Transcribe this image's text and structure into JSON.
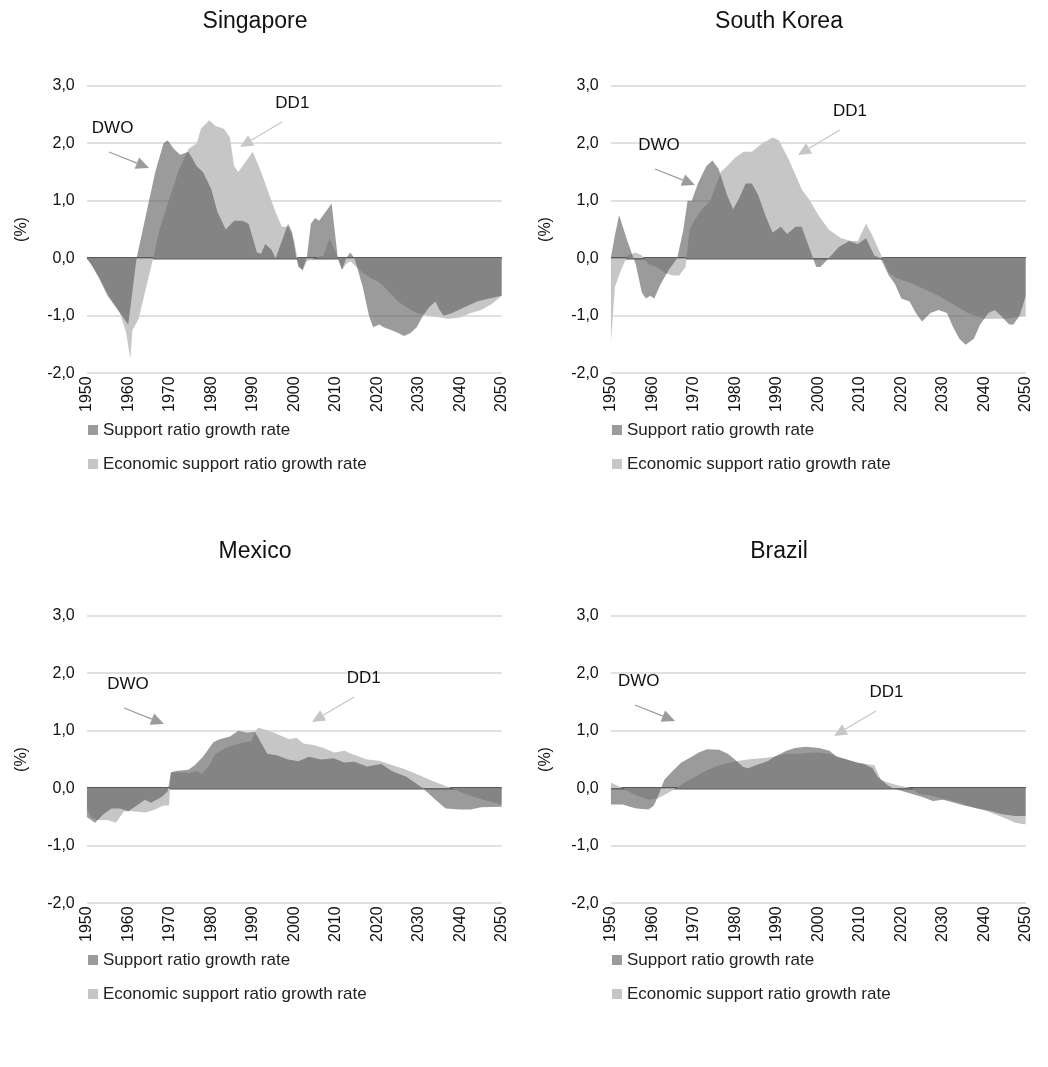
{
  "chart_data": [
    {
      "type": "area",
      "title": "Singapore",
      "ylabel": "(%)",
      "xlim": [
        1950,
        2050
      ],
      "xticks": [
        1950,
        1960,
        1970,
        1980,
        1990,
        2000,
        2010,
        2020,
        2030,
        2040,
        2050
      ],
      "ylim": [
        -2,
        3
      ],
      "yticks": [
        {
          "value": -2,
          "label": "-2,0"
        },
        {
          "value": -1,
          "label": "-1,0"
        },
        {
          "value": 0,
          "label": "0,0"
        },
        {
          "value": 1,
          "label": "1,0"
        },
        {
          "value": 2,
          "label": "2,0"
        },
        {
          "value": 3,
          "label": "3,0"
        }
      ],
      "grid": "y",
      "legend": "bottom",
      "annotations": [
        "DWO",
        "DD1"
      ],
      "series": [
        {
          "name": "Support ratio growth rate",
          "color": "#9b9b9b",
          "x": [
            1950,
            1951,
            1953,
            1955,
            1958,
            1960,
            1962,
            1965,
            1966.5,
            1968.5,
            1969.5,
            1971,
            1972.5,
            1974.5,
            1976.5,
            1978,
            1980,
            1981.5,
            1983.5,
            1985.5,
            1987.5,
            1989,
            1991,
            1992,
            1993,
            1994.5,
            1995.5,
            1997,
            1998.5,
            1999.5,
            2000.5,
            2001,
            2002,
            2003,
            2004,
            2005,
            2006,
            2007,
            2009,
            2010.5,
            2011.5,
            2012.5,
            2013.5,
            2014.5,
            2016.5,
            2018,
            2019,
            2020.5,
            2021.5,
            2023.5,
            2025,
            2026.5,
            2028,
            2029.5,
            2031,
            2032.5,
            2034,
            2035,
            2036,
            2038,
            2041,
            2044,
            2047,
            2050
          ],
          "values": [
            0,
            -0.1,
            -0.35,
            -0.65,
            -0.95,
            -1.15,
            0,
            1.0,
            1.5,
            2.0,
            2.05,
            1.9,
            1.8,
            1.85,
            1.6,
            1.5,
            1.2,
            0.8,
            0.5,
            0.65,
            0.65,
            0.6,
            0.1,
            0.08,
            0.25,
            0.15,
            0,
            0.3,
            0.6,
            0.45,
            0,
            -0.15,
            -0.2,
            0,
            0.6,
            0.7,
            0.65,
            0.75,
            0.95,
            0,
            -0.2,
            0,
            0.1,
            0,
            -0.5,
            -1.0,
            -1.2,
            -1.15,
            -1.2,
            -1.25,
            -1.3,
            -1.35,
            -1.3,
            -1.2,
            -1.0,
            -0.85,
            -0.75,
            -0.9,
            -1.0,
            -0.95,
            -0.85,
            -0.75,
            -0.7,
            -0.65
          ]
        },
        {
          "name": "Economic support ratio growth rate",
          "color": "#c6c6c6",
          "x": [
            1950,
            1952,
            1955,
            1958,
            1959.5,
            1960.5,
            1961,
            1962.5,
            1964,
            1966,
            1967.5,
            1970,
            1972,
            1974.5,
            1976.5,
            1977.5,
            1979.5,
            1981,
            1983,
            1984.5,
            1985.5,
            1986.5,
            1988.5,
            1990,
            1992,
            1993.5,
            1995.5,
            1997,
            1998.5,
            2000,
            2001,
            2002,
            2003,
            2005,
            2007,
            2008.5,
            2010,
            2011.5,
            2012.5,
            2013.5,
            2015,
            2016.5,
            2018.5,
            2020,
            2021,
            2023,
            2025,
            2027,
            2029.5,
            2032,
            2034.5,
            2037,
            2040,
            2042.5,
            2045,
            2047.5,
            2050
          ],
          "values": [
            0,
            -0.2,
            -0.6,
            -0.95,
            -1.3,
            -1.75,
            -1.25,
            -1.05,
            -0.6,
            0,
            0.5,
            1.05,
            1.5,
            1.9,
            2.0,
            2.25,
            2.4,
            2.3,
            2.25,
            2.1,
            1.6,
            1.5,
            1.7,
            1.85,
            1.5,
            1.2,
            0.8,
            0.55,
            0.55,
            0.3,
            -0.1,
            -0.22,
            -0.05,
            0,
            0.05,
            0.35,
            0.1,
            -0.2,
            -0.1,
            -0.05,
            -0.15,
            -0.25,
            -0.35,
            -0.4,
            -0.45,
            -0.6,
            -0.75,
            -0.85,
            -0.95,
            -1.0,
            -1.02,
            -1.05,
            -1.03,
            -0.95,
            -0.9,
            -0.8,
            -0.65
          ]
        }
      ]
    },
    {
      "type": "area",
      "title": "South Korea",
      "ylabel": "(%)",
      "xlim": [
        1950,
        2050
      ],
      "xticks": [
        1950,
        1960,
        1970,
        1980,
        1990,
        2000,
        2010,
        2020,
        2030,
        2040,
        2050
      ],
      "ylim": [
        -2,
        3
      ],
      "yticks": [
        {
          "value": -2,
          "label": "-2,0"
        },
        {
          "value": -1,
          "label": "-1,0"
        },
        {
          "value": 0,
          "label": "0,0"
        },
        {
          "value": 1,
          "label": "1,0"
        },
        {
          "value": 2,
          "label": "2,0"
        },
        {
          "value": 3,
          "label": "3,0"
        }
      ],
      "grid": "y",
      "legend": "bottom",
      "annotations": [
        "DWO",
        "DD1"
      ],
      "series": [
        {
          "name": "Support ratio growth rate",
          "color": "#9b9b9b",
          "x": [
            1950,
            1951,
            1952,
            1954,
            1956,
            1957.5,
            1958.5,
            1959.5,
            1960.5,
            1962,
            1964,
            1966,
            1967.5,
            1968.5,
            1969.5,
            1971,
            1973,
            1974.5,
            1976,
            1978,
            1979.5,
            1981,
            1982.5,
            1984,
            1985.5,
            1987.5,
            1989,
            1991,
            1992.5,
            1994.5,
            1996,
            1997.5,
            1999.5,
            2000.5,
            2002.5,
            2005,
            2007.5,
            2009.5,
            2011.5,
            2013.5,
            2015,
            2017,
            2018.5,
            2020,
            2022,
            2023.5,
            2025,
            2027,
            2029,
            2031,
            2032.5,
            2034,
            2035.5,
            2037.5,
            2039,
            2041,
            2042.5,
            2044,
            2046,
            2047,
            2048.5,
            2050
          ],
          "values": [
            0,
            0.4,
            0.75,
            0.3,
            -0.1,
            -0.6,
            -0.7,
            -0.65,
            -0.7,
            -0.45,
            -0.2,
            0,
            0.5,
            1.0,
            1.0,
            1.3,
            1.6,
            1.7,
            1.55,
            1.1,
            0.85,
            1.05,
            1.3,
            1.3,
            1.1,
            0.7,
            0.45,
            0.55,
            0.42,
            0.55,
            0.55,
            0.25,
            -0.15,
            -0.15,
            0,
            0.2,
            0.3,
            0.25,
            0.35,
            0.05,
            0,
            -0.3,
            -0.45,
            -0.7,
            -0.75,
            -0.95,
            -1.1,
            -0.95,
            -0.9,
            -0.95,
            -1.2,
            -1.4,
            -1.5,
            -1.4,
            -1.15,
            -0.95,
            -0.9,
            -1.0,
            -1.15,
            -1.15,
            -1.0,
            -0.65
          ]
        },
        {
          "name": "Economic support ratio growth rate",
          "color": "#c6c6c6",
          "x": [
            1950,
            1951,
            1952.5,
            1954,
            1956,
            1957.5,
            1959,
            1961,
            1963,
            1965,
            1966.5,
            1968,
            1969,
            1970.5,
            1972,
            1974,
            1976.5,
            1978,
            1980,
            1982,
            1984,
            1986.5,
            1989,
            1990.5,
            1993,
            1996,
            1998,
            2000,
            2002.5,
            2005.5,
            2008,
            2009.5,
            2011.5,
            2013,
            2015.5,
            2017,
            2019,
            2021,
            2023,
            2026,
            2029,
            2032.5,
            2036,
            2040,
            2045,
            2050
          ],
          "values": [
            -1.5,
            -0.5,
            -0.2,
            0.05,
            0.1,
            0.05,
            -0.1,
            -0.15,
            -0.25,
            -0.3,
            -0.3,
            -0.15,
            0.5,
            0.7,
            0.85,
            1.0,
            1.5,
            1.6,
            1.75,
            1.85,
            1.85,
            2.0,
            2.1,
            2.05,
            1.7,
            1.2,
            1.0,
            0.75,
            0.5,
            0.35,
            0.3,
            0.3,
            0.6,
            0.4,
            0,
            -0.25,
            -0.35,
            -0.4,
            -0.45,
            -0.55,
            -0.65,
            -0.8,
            -0.95,
            -1.05,
            -1.05,
            -1.0
          ]
        }
      ]
    },
    {
      "type": "area",
      "title": "Mexico",
      "ylabel": "(%)",
      "xlim": [
        1950,
        2050
      ],
      "xticks": [
        1950,
        1960,
        1970,
        1980,
        1990,
        2000,
        2010,
        2020,
        2030,
        2040,
        2050
      ],
      "ylim": [
        -2,
        3
      ],
      "yticks": [
        {
          "value": -2,
          "label": "-2,0"
        },
        {
          "value": -1,
          "label": "-1,0"
        },
        {
          "value": 0,
          "label": "0,0"
        },
        {
          "value": 1,
          "label": "1,0"
        },
        {
          "value": 2,
          "label": "2,0"
        },
        {
          "value": 3,
          "label": "3,0"
        }
      ],
      "grid": "y",
      "legend": "bottom",
      "annotations": [
        "DWO",
        "DD1"
      ],
      "series": [
        {
          "name": "Support ratio growth rate",
          "color": "#9b9b9b",
          "x": [
            1950,
            1952,
            1954,
            1956,
            1958,
            1960,
            1963,
            1964,
            1965.5,
            1968,
            1969.5,
            1970.3,
            1971.5,
            1974.5,
            1976,
            1978,
            1980.5,
            1982,
            1984.5,
            1986.5,
            1988.5,
            1990.5,
            1993.5,
            1996,
            1998.5,
            2001,
            2003.5,
            2006.5,
            2009.5,
            2012,
            2014.5,
            2017.5,
            2021,
            2023.5,
            2027,
            2031,
            2032.5,
            2034,
            2036.5,
            2040,
            2042.5,
            2045,
            2050
          ],
          "values": [
            -0.5,
            -0.6,
            -0.45,
            -0.35,
            -0.35,
            -0.4,
            -0.25,
            -0.2,
            -0.25,
            -0.15,
            -0.05,
            0.28,
            0.3,
            0.32,
            0.4,
            0.55,
            0.8,
            0.85,
            0.9,
            1.0,
            0.97,
            0.98,
            0.6,
            0.57,
            0.5,
            0.47,
            0.55,
            0.5,
            0.52,
            0.45,
            0.46,
            0.38,
            0.42,
            0.3,
            0.2,
            0,
            -0.1,
            -0.2,
            -0.35,
            -0.37,
            -0.37,
            -0.33,
            -0.32
          ]
        },
        {
          "name": "Economic support ratio growth rate",
          "color": "#c6c6c6",
          "x": [
            1950,
            1951,
            1952.5,
            1955,
            1957,
            1959,
            1961,
            1964,
            1966,
            1968.5,
            1969.8,
            1970.3,
            1974.8,
            1976.5,
            1977.8,
            1979.5,
            1981,
            1983.5,
            1985.5,
            1988,
            1989.7,
            1990.6,
            1991.4,
            1993.9,
            1995.5,
            1998.8,
            2000.5,
            2002.2,
            2004.6,
            2007.1,
            2009.6,
            2012.1,
            2013.7,
            2017.5,
            2020.4,
            2023.7,
            2027,
            2030.3,
            2033.6,
            2036.1,
            2038,
            2041.3,
            2045.4,
            2050
          ],
          "values": [
            -0.35,
            -0.5,
            -0.55,
            -0.55,
            -0.6,
            -0.4,
            -0.4,
            -0.42,
            -0.38,
            -0.3,
            -0.3,
            0.28,
            0.27,
            0.3,
            0.25,
            0.4,
            0.6,
            0.7,
            0.75,
            0.8,
            0.82,
            1.0,
            1.05,
            1.0,
            0.95,
            0.85,
            0.88,
            0.78,
            0.75,
            0.7,
            0.62,
            0.65,
            0.6,
            0.5,
            0.48,
            0.4,
            0.32,
            0.22,
            0.12,
            0.05,
            0,
            -0.1,
            -0.2,
            -0.28
          ]
        }
      ]
    },
    {
      "type": "area",
      "title": "Brazil",
      "ylabel": "(%)",
      "xlim": [
        1950,
        2050
      ],
      "xticks": [
        1950,
        1960,
        1970,
        1980,
        1990,
        2000,
        2010,
        2020,
        2030,
        2040,
        2050
      ],
      "ylim": [
        -2,
        3
      ],
      "yticks": [
        {
          "value": -2,
          "label": "-2,0"
        },
        {
          "value": -1,
          "label": "-1,0"
        },
        {
          "value": 0,
          "label": "0,0"
        },
        {
          "value": 1,
          "label": "1,0"
        },
        {
          "value": 2,
          "label": "2,0"
        },
        {
          "value": 3,
          "label": "3,0"
        }
      ],
      "grid": "y",
      "legend": "bottom",
      "annotations": [
        "DWO",
        "DD1"
      ],
      "series": [
        {
          "name": "Support ratio growth rate",
          "color": "#9b9b9b",
          "x": [
            1950,
            1952.9,
            1954.6,
            1956.2,
            1959.1,
            1960.4,
            1961.6,
            1962.9,
            1964.9,
            1967,
            1969.5,
            1971.2,
            1973.2,
            1976.1,
            1978.2,
            1979.9,
            1981.9,
            1983.2,
            1984.9,
            1987.8,
            1989.4,
            1992.3,
            1994.4,
            1996.9,
            2000.2,
            2002.7,
            2004.4,
            2006.8,
            2009.3,
            2011,
            2013.1,
            2014.3,
            2016.8,
            2018,
            2022.6,
            2025.1,
            2027.6,
            2030.1,
            2031.7,
            2035.1,
            2038.4,
            2041.7,
            2044.2,
            2047.5,
            2050
          ],
          "values": [
            -0.28,
            -0.28,
            -0.32,
            -0.35,
            -0.37,
            -0.3,
            -0.1,
            0.15,
            0.3,
            0.45,
            0.55,
            0.62,
            0.68,
            0.67,
            0.6,
            0.5,
            0.37,
            0.35,
            0.4,
            0.47,
            0.55,
            0.65,
            0.7,
            0.72,
            0.7,
            0.65,
            0.55,
            0.5,
            0.45,
            0.42,
            0.35,
            0.2,
            0.05,
            0,
            -0.1,
            -0.15,
            -0.22,
            -0.2,
            -0.23,
            -0.3,
            -0.35,
            -0.4,
            -0.45,
            -0.48,
            -0.48
          ]
        },
        {
          "name": "Economic support ratio growth rate",
          "color": "#c6c6c6",
          "x": [
            1950,
            1952.9,
            1955.4,
            1957.1,
            1959.1,
            1961.2,
            1963.3,
            1965.8,
            1967.8,
            1970.3,
            1972.8,
            1975.3,
            1977.8,
            1980.3,
            1982.8,
            1986.1,
            1989.4,
            1992.3,
            1995.2,
            1998.5,
            2000.2,
            2002.7,
            2006,
            2009.3,
            2013.5,
            2015.1,
            2016.8,
            2019.3,
            2022.6,
            2024.3,
            2026.8,
            2030.9,
            2034.2,
            2036.7,
            2040,
            2042.5,
            2045,
            2047.5,
            2050
          ],
          "values": [
            0.1,
            0,
            -0.1,
            -0.15,
            -0.2,
            -0.18,
            -0.1,
            0,
            0.1,
            0.2,
            0.3,
            0.38,
            0.43,
            0.47,
            0.5,
            0.52,
            0.55,
            0.6,
            0.6,
            0.62,
            0.62,
            0.6,
            0.52,
            0.45,
            0.4,
            0.15,
            0.1,
            0.05,
            0,
            -0.1,
            -0.12,
            -0.2,
            -0.25,
            -0.32,
            -0.38,
            -0.45,
            -0.52,
            -0.6,
            -0.63
          ]
        }
      ]
    }
  ]
}
